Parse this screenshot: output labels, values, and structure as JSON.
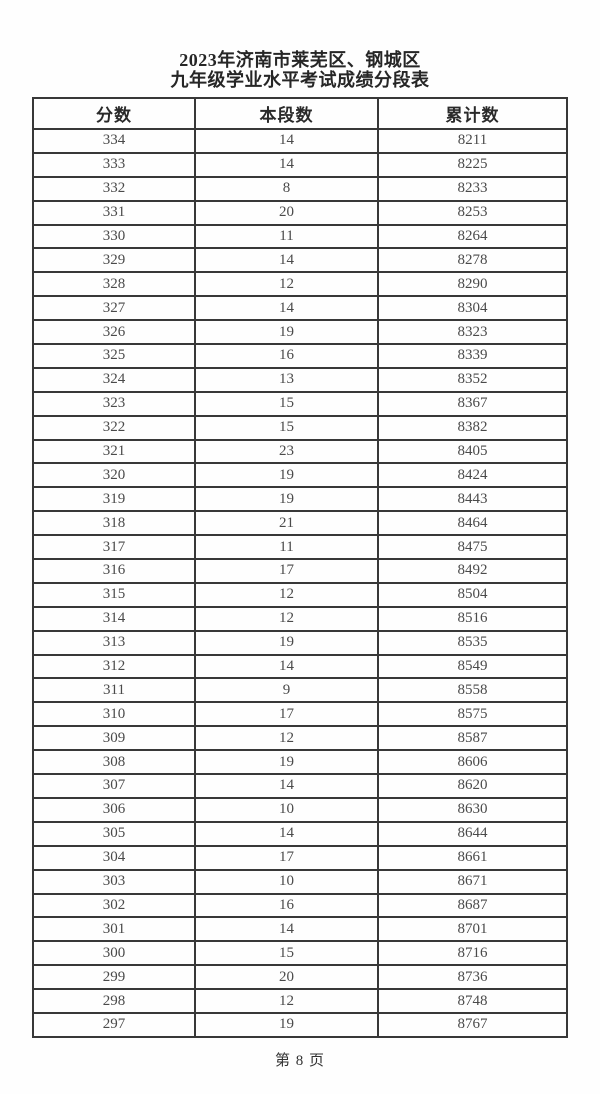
{
  "page": {
    "title_line1": "2023年济南市莱芜区、钢城区",
    "title_line2": "九年级学业水平考试成绩分段表",
    "page_number": "第 8 页"
  },
  "table": {
    "headers": [
      "分数",
      "本段数",
      "累计数"
    ],
    "column_meanings": [
      "score",
      "count-in-segment",
      "cumulative-count"
    ],
    "rows": [
      [
        334,
        14,
        8211
      ],
      [
        333,
        14,
        8225
      ],
      [
        332,
        8,
        8233
      ],
      [
        331,
        20,
        8253
      ],
      [
        330,
        11,
        8264
      ],
      [
        329,
        14,
        8278
      ],
      [
        328,
        12,
        8290
      ],
      [
        327,
        14,
        8304
      ],
      [
        326,
        19,
        8323
      ],
      [
        325,
        16,
        8339
      ],
      [
        324,
        13,
        8352
      ],
      [
        323,
        15,
        8367
      ],
      [
        322,
        15,
        8382
      ],
      [
        321,
        23,
        8405
      ],
      [
        320,
        19,
        8424
      ],
      [
        319,
        19,
        8443
      ],
      [
        318,
        21,
        8464
      ],
      [
        317,
        11,
        8475
      ],
      [
        316,
        17,
        8492
      ],
      [
        315,
        12,
        8504
      ],
      [
        314,
        12,
        8516
      ],
      [
        313,
        19,
        8535
      ],
      [
        312,
        14,
        8549
      ],
      [
        311,
        9,
        8558
      ],
      [
        310,
        17,
        8575
      ],
      [
        309,
        12,
        8587
      ],
      [
        308,
        19,
        8606
      ],
      [
        307,
        14,
        8620
      ],
      [
        306,
        10,
        8630
      ],
      [
        305,
        14,
        8644
      ],
      [
        304,
        17,
        8661
      ],
      [
        303,
        10,
        8671
      ],
      [
        302,
        16,
        8687
      ],
      [
        301,
        14,
        8701
      ],
      [
        300,
        15,
        8716
      ],
      [
        299,
        20,
        8736
      ],
      [
        298,
        12,
        8748
      ],
      [
        297,
        19,
        8767
      ]
    ]
  },
  "colors": {
    "page_background": "#fefefe",
    "border": "#383838",
    "title_text": "#262626",
    "cell_text": "#4a4a4a"
  }
}
